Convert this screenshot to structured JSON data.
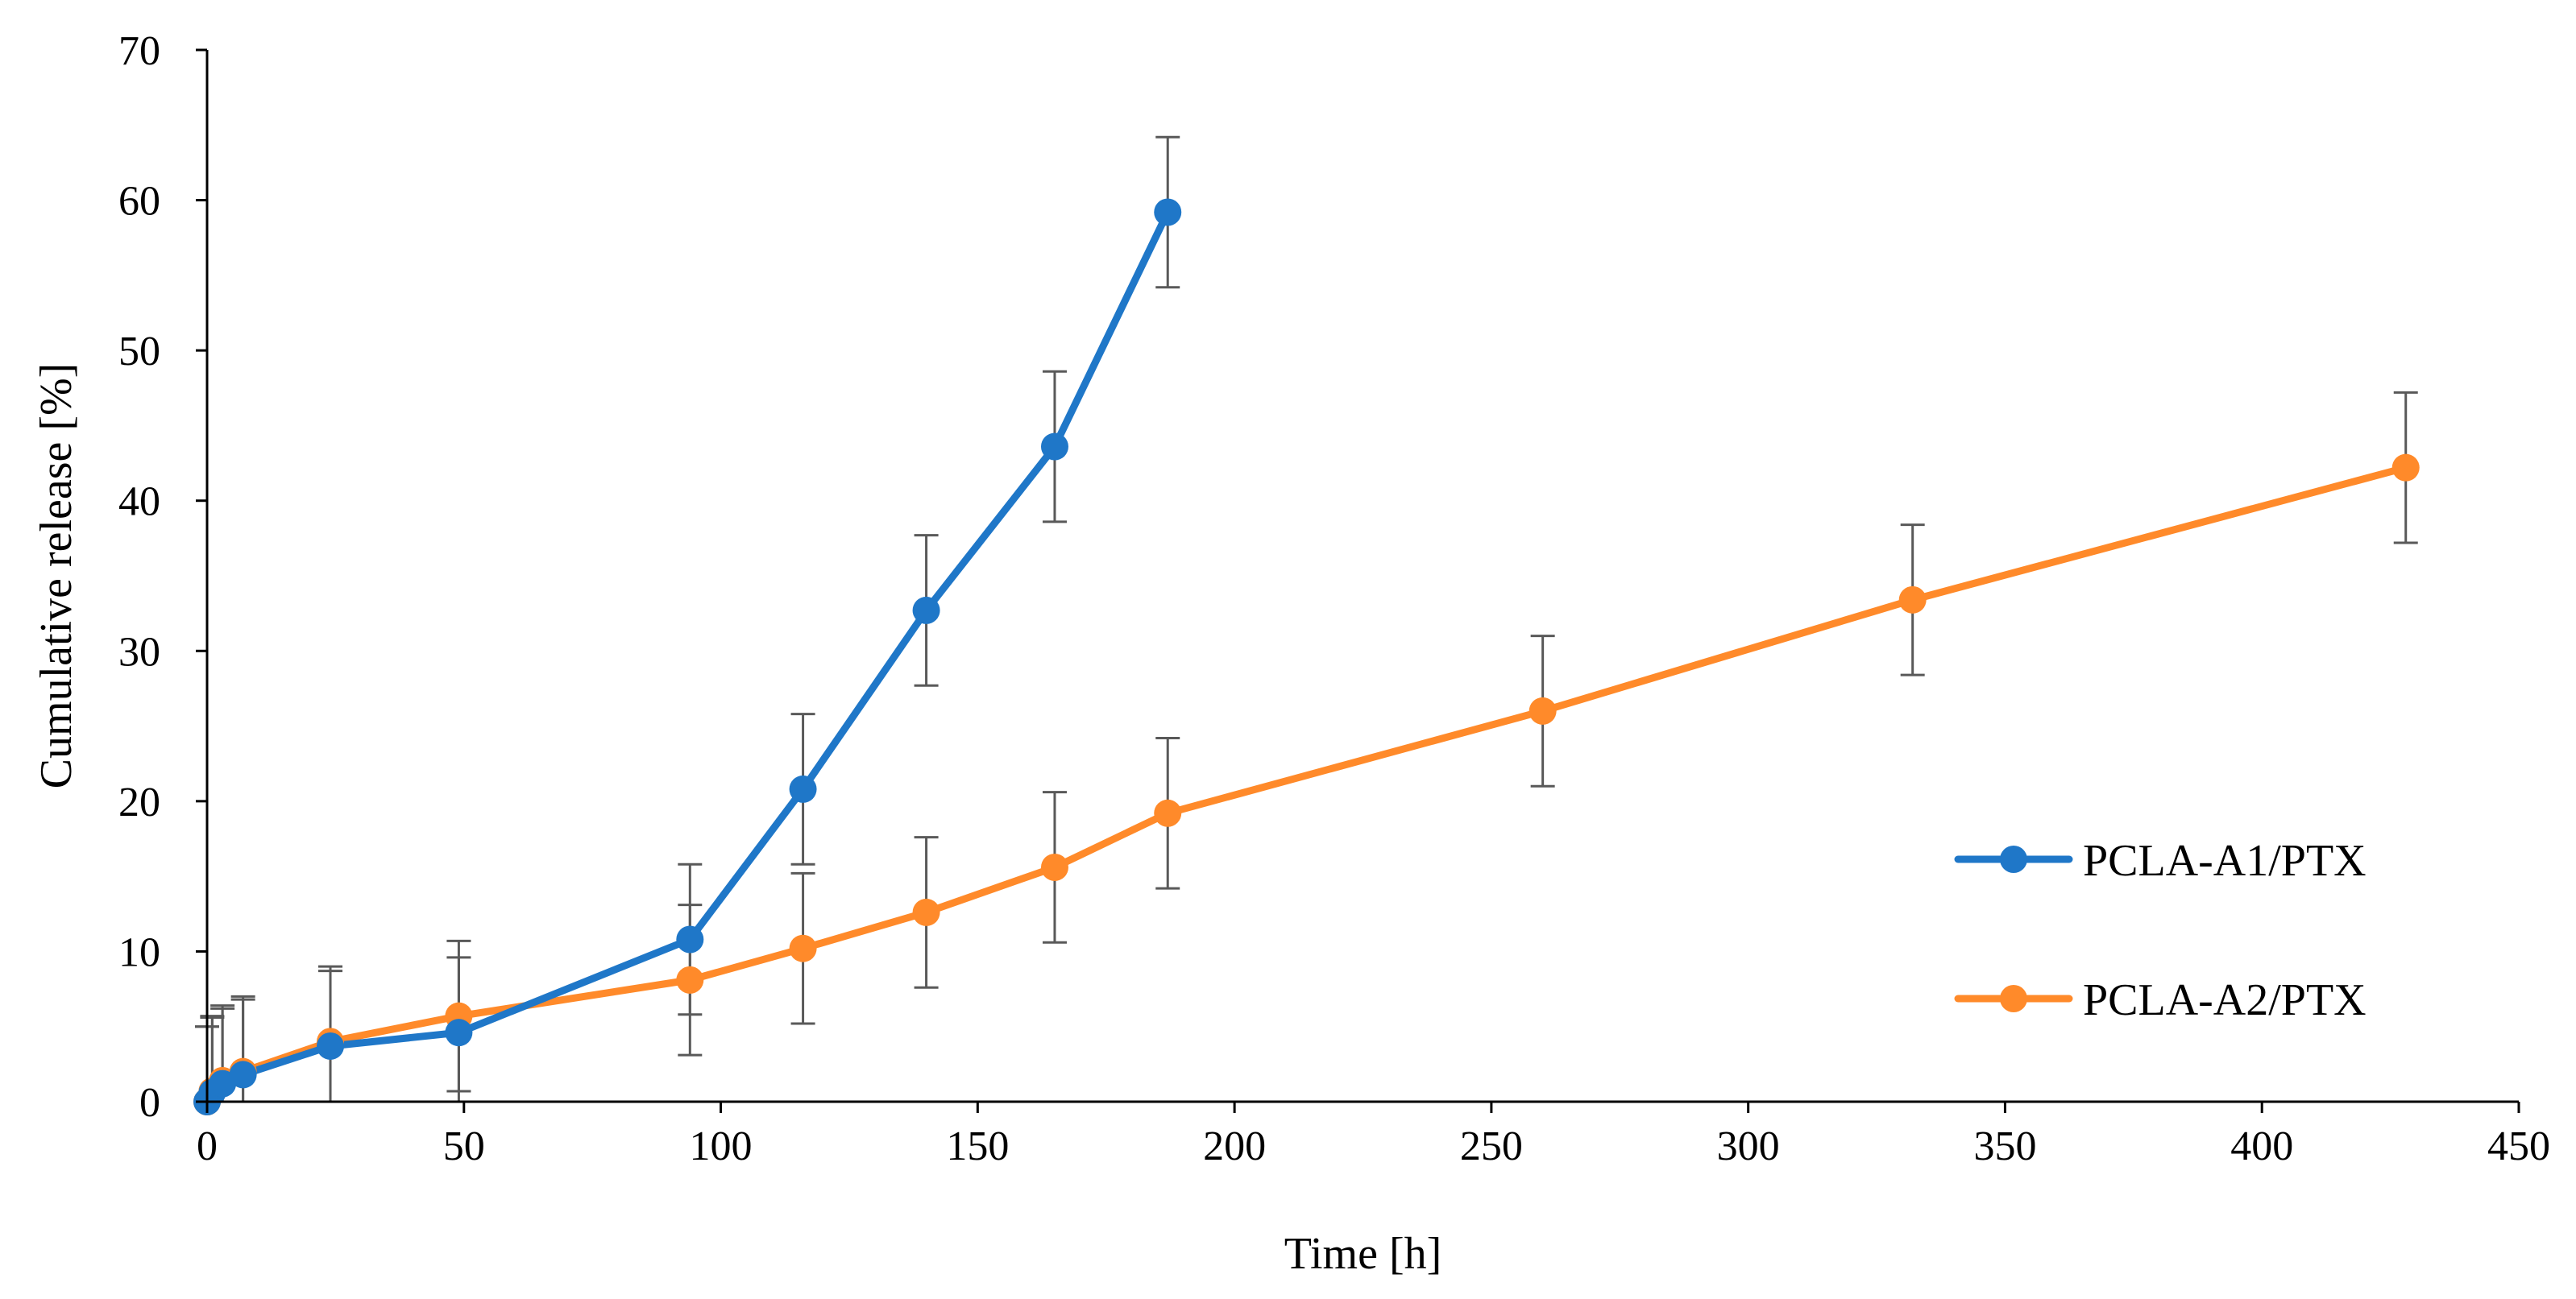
{
  "chart_data": {
    "type": "line",
    "title": "",
    "xlabel": "Time [h]",
    "ylabel": "Cumulative release [%]",
    "xlim": [
      0,
      450
    ],
    "ylim": [
      0,
      70
    ],
    "xticks": [
      0,
      50,
      100,
      150,
      200,
      250,
      300,
      350,
      400,
      450
    ],
    "yticks": [
      0,
      10,
      20,
      30,
      40,
      50,
      60,
      70
    ],
    "xtick_labels": [
      "0",
      "50",
      "100",
      "150",
      "200",
      "250",
      "300",
      "350",
      "400",
      "450"
    ],
    "ytick_labels": [
      "0",
      "10",
      "20",
      "30",
      "40",
      "50",
      "60",
      "70"
    ],
    "grid": false,
    "legend_position": "right",
    "error_bar_color": "#595959",
    "series": [
      {
        "name": "PCLA-A1/PTX",
        "color": "#1F77C8",
        "x": [
          0,
          1,
          3,
          7,
          24,
          49,
          94,
          116,
          140,
          165,
          187
        ],
        "y": [
          0,
          0.6,
          1.2,
          1.8,
          3.7,
          4.6,
          10.8,
          20.8,
          32.7,
          43.6,
          59.2
        ],
        "error": [
          5.0,
          5.0,
          5.0,
          5.0,
          5.0,
          5.0,
          5.0,
          5.0,
          5.0,
          5.0,
          5.0
        ]
      },
      {
        "name": "PCLA-A2/PTX",
        "color": "#FF8A2A",
        "x": [
          0,
          1,
          3,
          7,
          24,
          49,
          94,
          116,
          140,
          165,
          187,
          260,
          332,
          428
        ],
        "y": [
          0,
          0.7,
          1.4,
          2.0,
          4.0,
          5.7,
          8.1,
          10.2,
          12.6,
          15.6,
          19.2,
          26.0,
          33.4,
          42.2
        ],
        "error": [
          5.0,
          5.0,
          5.0,
          5.0,
          5.0,
          5.0,
          5.0,
          5.0,
          5.0,
          5.0,
          5.0,
          5.0,
          5.0,
          5.0
        ]
      }
    ]
  }
}
